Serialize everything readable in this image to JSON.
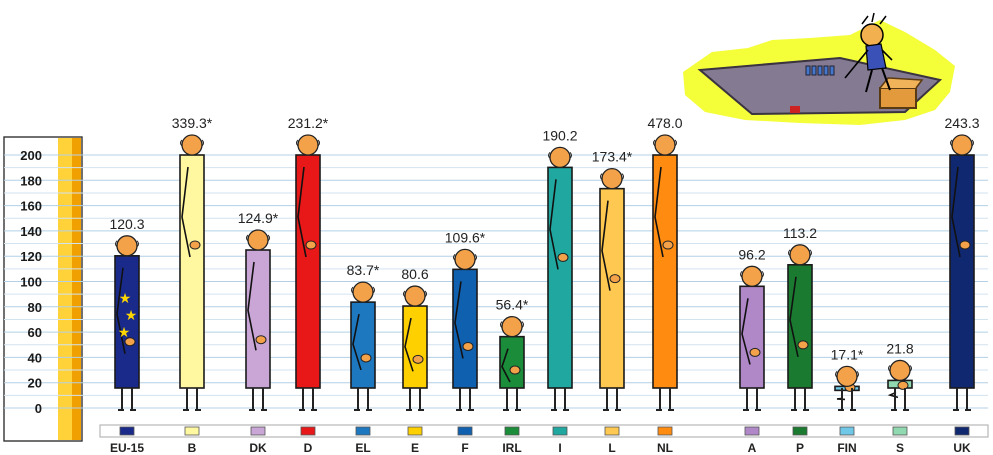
{
  "chart_data": {
    "type": "bar",
    "title": "",
    "xlabel": "",
    "ylabel": "",
    "ylim": [
      0,
      200
    ],
    "y_ticks": [
      "200",
      "180",
      "160",
      "140",
      "120",
      "100",
      "80",
      "60",
      "40",
      "20",
      "0"
    ],
    "grid": true,
    "categories": [
      "EU-15",
      "B",
      "DK",
      "D",
      "EL",
      "E",
      "F",
      "IRL",
      "I",
      "L",
      "NL",
      "A",
      "P",
      "FIN",
      "S",
      "UK"
    ],
    "values": [
      120.3,
      339.3,
      124.9,
      231.2,
      83.7,
      80.6,
      109.6,
      56.4,
      190.2,
      173.4,
      478.0,
      96.2,
      113.2,
      17.1,
      21.8,
      243.3
    ],
    "value_labels": [
      "120.3",
      "339.3*",
      "124.9*",
      "231.2*",
      "83.7*",
      "80.6",
      "109.6*",
      "56.4*",
      "190.2",
      "173.4*",
      "478.0",
      "96.2",
      "113.2",
      "17.1*",
      "21.8",
      "243.3"
    ],
    "colors": [
      "#1a2a8a",
      "#fff8a0",
      "#c9a6d6",
      "#e81818",
      "#1e78c0",
      "#ffd000",
      "#1060b0",
      "#1a8c3a",
      "#20a8a0",
      "#ffc850",
      "#ff8c10",
      "#b088c8",
      "#1a7a30",
      "#70c8e8",
      "#90d8b0",
      "#102870"
    ]
  }
}
